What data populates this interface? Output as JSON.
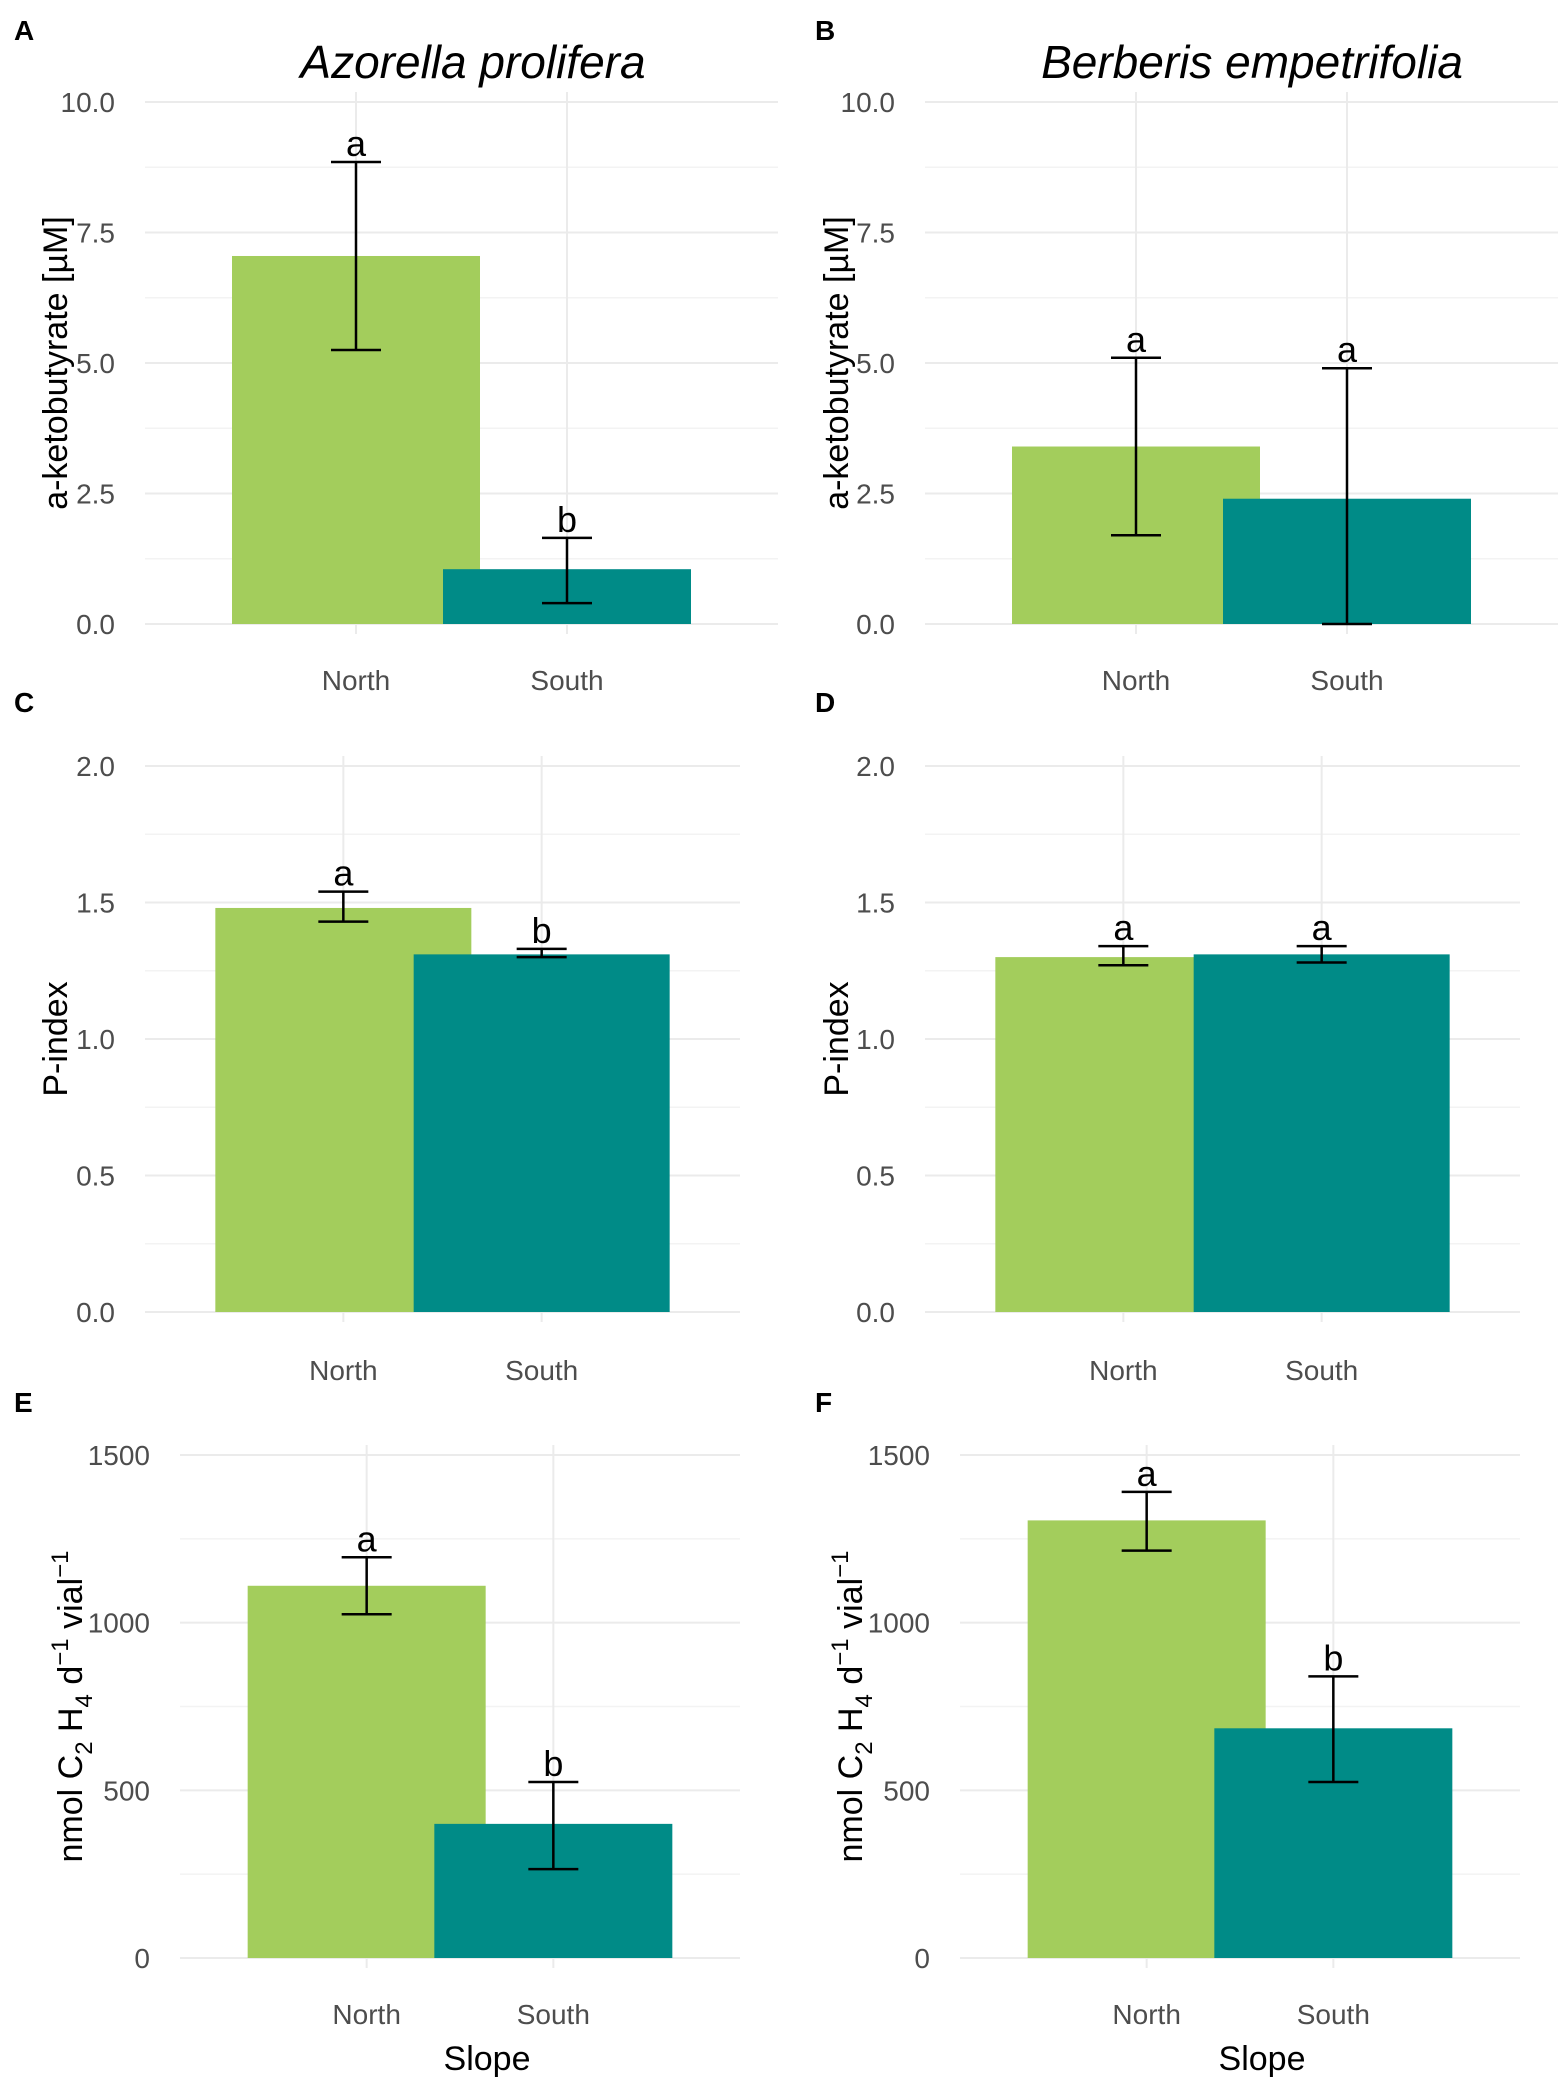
{
  "titles": {
    "A": "Azorella prolifera",
    "B": "Berberis empetrifolia"
  },
  "colors": {
    "North": "#a3cd5c",
    "South": "#008b87"
  },
  "chart_data": [
    {
      "panel": "A",
      "type": "bar",
      "species": "Azorella prolifera",
      "ylabel": "a-ketobutyrate [µM]",
      "xlabel": "",
      "ylim": [
        0,
        10
      ],
      "yticks": [
        0,
        2.5,
        5,
        7.5,
        10
      ],
      "ytick_labels": [
        "0.0",
        "2.5",
        "5.0",
        "7.5",
        "10.0"
      ],
      "categories": [
        "North",
        "South"
      ],
      "values": [
        7.05,
        1.05
      ],
      "err_low": [
        5.25,
        0.4
      ],
      "err_high": [
        8.85,
        1.65
      ],
      "sig": [
        "a",
        "b"
      ]
    },
    {
      "panel": "B",
      "type": "bar",
      "species": "Berberis empetrifolia",
      "ylabel": "a-ketobutyrate [µM]",
      "xlabel": "",
      "ylim": [
        0,
        10
      ],
      "yticks": [
        0,
        2.5,
        5,
        7.5,
        10
      ],
      "ytick_labels": [
        "0.0",
        "2.5",
        "5.0",
        "7.5",
        "10.0"
      ],
      "categories": [
        "North",
        "South"
      ],
      "values": [
        3.4,
        2.4
      ],
      "err_low": [
        1.7,
        0.0
      ],
      "err_high": [
        5.1,
        4.9
      ],
      "sig": [
        "a",
        "a"
      ]
    },
    {
      "panel": "C",
      "type": "bar",
      "species": "Azorella prolifera",
      "ylabel": "P-index",
      "xlabel": "",
      "ylim": [
        0,
        2
      ],
      "yticks": [
        0,
        0.5,
        1,
        1.5,
        2
      ],
      "ytick_labels": [
        "0.0",
        "0.5",
        "1.0",
        "1.5",
        "2.0"
      ],
      "categories": [
        "North",
        "South"
      ],
      "values": [
        1.48,
        1.31
      ],
      "err_low": [
        1.43,
        1.3
      ],
      "err_high": [
        1.54,
        1.33
      ],
      "sig": [
        "a",
        "b"
      ]
    },
    {
      "panel": "D",
      "type": "bar",
      "species": "Berberis empetrifolia",
      "ylabel": "P-index",
      "xlabel": "",
      "ylim": [
        0,
        2
      ],
      "yticks": [
        0,
        0.5,
        1,
        1.5,
        2
      ],
      "ytick_labels": [
        "0.0",
        "0.5",
        "1.0",
        "1.5",
        "2.0"
      ],
      "categories": [
        "North",
        "South"
      ],
      "values": [
        1.3,
        1.31
      ],
      "err_low": [
        1.27,
        1.28
      ],
      "err_high": [
        1.34,
        1.34
      ],
      "sig": [
        "a",
        "a"
      ]
    },
    {
      "panel": "E",
      "type": "bar",
      "species": "Azorella prolifera",
      "ylabel": "nmol C2 H4 d-1 vial-1",
      "xlabel": "Slope",
      "ylim": [
        0,
        1500
      ],
      "yticks": [
        0,
        500,
        1000,
        1500
      ],
      "ytick_labels": [
        "0",
        "500",
        "1000",
        "1500"
      ],
      "categories": [
        "North",
        "South"
      ],
      "values": [
        1110,
        400
      ],
      "err_low": [
        1025,
        265
      ],
      "err_high": [
        1195,
        525
      ],
      "sig": [
        "a",
        "b"
      ]
    },
    {
      "panel": "F",
      "type": "bar",
      "species": "Berberis empetrifolia",
      "ylabel": "nmol C2 H4 d-1 vial-1",
      "xlabel": "Slope",
      "ylim": [
        0,
        1500
      ],
      "yticks": [
        0,
        500,
        1000,
        1500
      ],
      "ytick_labels": [
        "0",
        "500",
        "1000",
        "1500"
      ],
      "categories": [
        "North",
        "South"
      ],
      "values": [
        1305,
        685
      ],
      "err_low": [
        1215,
        525
      ],
      "err_high": [
        1390,
        840
      ],
      "sig": [
        "a",
        "b"
      ]
    }
  ]
}
